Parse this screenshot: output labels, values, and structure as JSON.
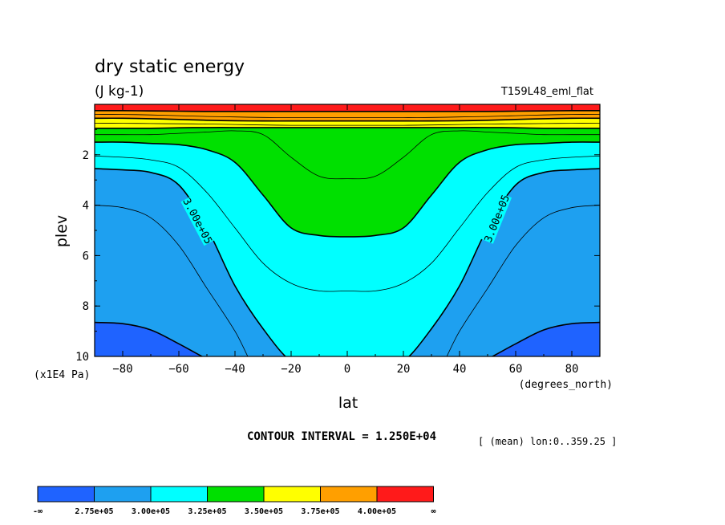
{
  "chart_data": {
    "type": "contour",
    "title": "dry static energy",
    "subtitle": "(J kg-1)",
    "experiment": "T159L48_eml_flat",
    "xlabel": "lat",
    "xunit": "(degrees_north)",
    "ylabel": "plev",
    "yunit": "(x1E4 Pa)",
    "xlim": [
      -90,
      90
    ],
    "ylim": [
      0,
      10
    ],
    "y_inverted": true,
    "x_ticks": [
      -80,
      -60,
      -40,
      -20,
      0,
      20,
      40,
      60,
      80
    ],
    "y_ticks": [
      2,
      4,
      6,
      8,
      10
    ],
    "contour_interval_text": "CONTOUR INTERVAL = 1.250E+04",
    "mean_note": "[ (mean) lon:0..359.25 ]",
    "contour_labels": [
      "3.00e+05",
      "3.00e+05"
    ],
    "levels": [
      275000,
      300000,
      325000,
      350000,
      375000,
      400000
    ],
    "colorbar": {
      "colors": [
        "#1f63ff",
        "#1ea0f0",
        "#00ffff",
        "#00e000",
        "#ffff00",
        "#ff9f00",
        "#ff1a1a"
      ],
      "labels": [
        "-∞",
        "2.75e+05",
        "3.00e+05",
        "3.25e+05",
        "3.50e+05",
        "3.75e+05",
        "4.00e+05",
        "∞"
      ]
    },
    "boundaries_plev": {
      "lat": [
        -90,
        -80,
        -70,
        -60,
        -50,
        -40,
        -30,
        -20,
        -10,
        0,
        10,
        20,
        30,
        40,
        50,
        60,
        70,
        80,
        90
      ],
      "b275": [
        8.65,
        8.7,
        8.95,
        9.5,
        10.1,
        10.6,
        11,
        11,
        11,
        11,
        11,
        11,
        11,
        10.6,
        10.1,
        9.5,
        8.95,
        8.7,
        8.65
      ],
      "b287": [
        4.0,
        4.1,
        4.5,
        5.6,
        7.3,
        9.0,
        11,
        11,
        11,
        11,
        11,
        11,
        11,
        9.0,
        7.3,
        5.6,
        4.5,
        4.1,
        4.0
      ],
      "b300": [
        2.55,
        2.6,
        2.7,
        3.2,
        4.9,
        7.2,
        8.9,
        10.2,
        10.6,
        10.6,
        10.6,
        10.2,
        8.9,
        7.2,
        4.9,
        3.2,
        2.7,
        2.6,
        2.55
      ],
      "b312": [
        2.05,
        2.1,
        2.2,
        2.5,
        3.5,
        4.9,
        6.3,
        7.1,
        7.4,
        7.4,
        7.4,
        7.1,
        6.3,
        4.9,
        3.5,
        2.5,
        2.2,
        2.1,
        2.05
      ],
      "b325": [
        1.5,
        1.5,
        1.55,
        1.6,
        1.8,
        2.3,
        3.6,
        4.9,
        5.2,
        5.25,
        5.2,
        4.9,
        3.6,
        2.3,
        1.8,
        1.6,
        1.55,
        1.5,
        1.5
      ],
      "b337": [
        1.2,
        1.2,
        1.2,
        1.15,
        1.1,
        1.05,
        1.2,
        2.1,
        2.85,
        2.95,
        2.85,
        2.1,
        1.2,
        1.05,
        1.1,
        1.15,
        1.2,
        1.2,
        1.2
      ],
      "b350": [
        0.95,
        0.95,
        0.95,
        0.93,
        0.92,
        0.92,
        0.92,
        0.92,
        0.92,
        0.92,
        0.92,
        0.92,
        0.92,
        0.92,
        0.92,
        0.93,
        0.95,
        0.95,
        0.95
      ],
      "b362": [
        0.75,
        0.75,
        0.76,
        0.77,
        0.78,
        0.8,
        0.82,
        0.83,
        0.83,
        0.83,
        0.83,
        0.83,
        0.82,
        0.8,
        0.78,
        0.77,
        0.76,
        0.75,
        0.75
      ],
      "b375": [
        0.55,
        0.55,
        0.57,
        0.6,
        0.63,
        0.65,
        0.66,
        0.66,
        0.66,
        0.66,
        0.66,
        0.66,
        0.66,
        0.65,
        0.63,
        0.6,
        0.57,
        0.55,
        0.55
      ],
      "b387": [
        0.4,
        0.4,
        0.42,
        0.45,
        0.48,
        0.5,
        0.52,
        0.53,
        0.53,
        0.53,
        0.53,
        0.53,
        0.52,
        0.5,
        0.48,
        0.45,
        0.42,
        0.4,
        0.4
      ],
      "b400": [
        0.25,
        0.25,
        0.26,
        0.27,
        0.28,
        0.28,
        0.28,
        0.28,
        0.28,
        0.28,
        0.28,
        0.28,
        0.28,
        0.28,
        0.28,
        0.27,
        0.26,
        0.25,
        0.25
      ]
    }
  }
}
